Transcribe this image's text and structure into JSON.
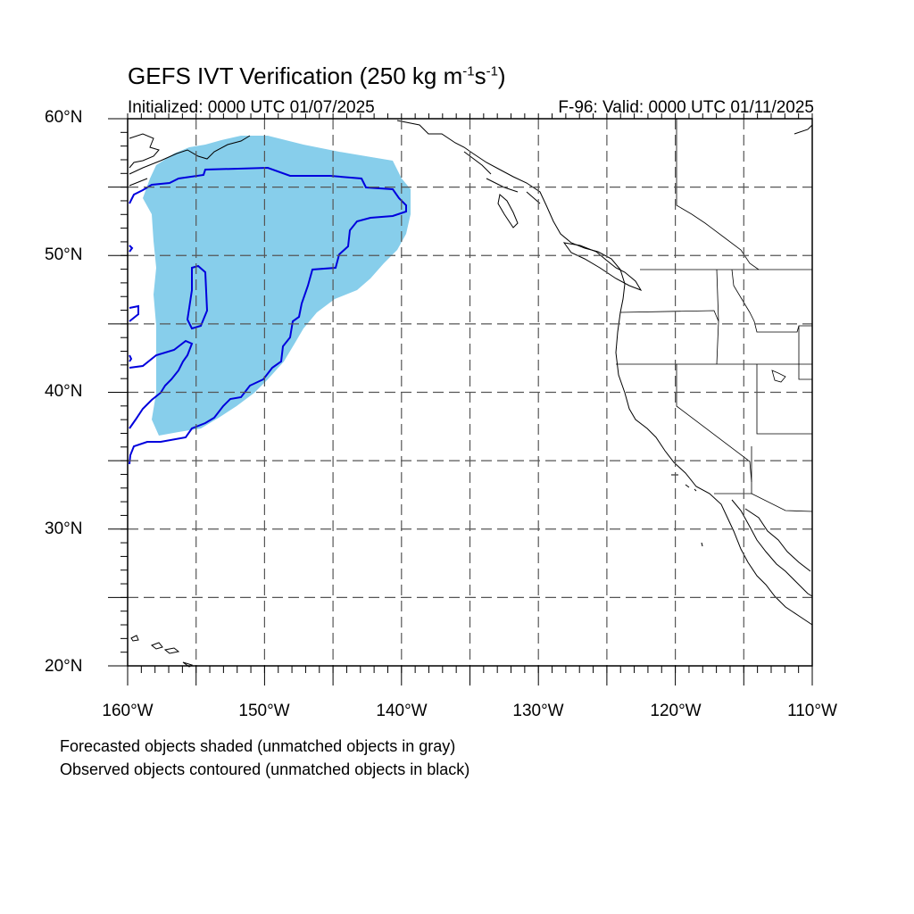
{
  "header": {
    "title_main": "GEFS IVT Verification (250 kg m",
    "title_exp1": "-1",
    "title_mid": "s",
    "title_exp2": "-1",
    "title_end": ")",
    "init_text": "Initialized: 0000 UTC 01/07/2025",
    "valid_text": "F-96: Valid: 0000 UTC 01/11/2025"
  },
  "axes": {
    "lat_labels": [
      "60°N",
      "50°N",
      "40°N",
      "30°N",
      "20°N"
    ],
    "lon_labels": [
      "160°W",
      "150°W",
      "140°W",
      "130°W",
      "120°W",
      "110°W"
    ],
    "lat_range": [
      20,
      60
    ],
    "lon_range": [
      -160,
      -110
    ],
    "grid": "dashed, every 5 degrees"
  },
  "legend": {
    "line1": "Forecasted objects shaded (unmatched objects in gray)",
    "line2": "Observed objects contoured (unmatched objects in black)"
  },
  "colors": {
    "forecast_fill": "#87ceeb",
    "observed_contour": "#0000dd",
    "coastline": "#000000",
    "grid": "#555555"
  }
}
